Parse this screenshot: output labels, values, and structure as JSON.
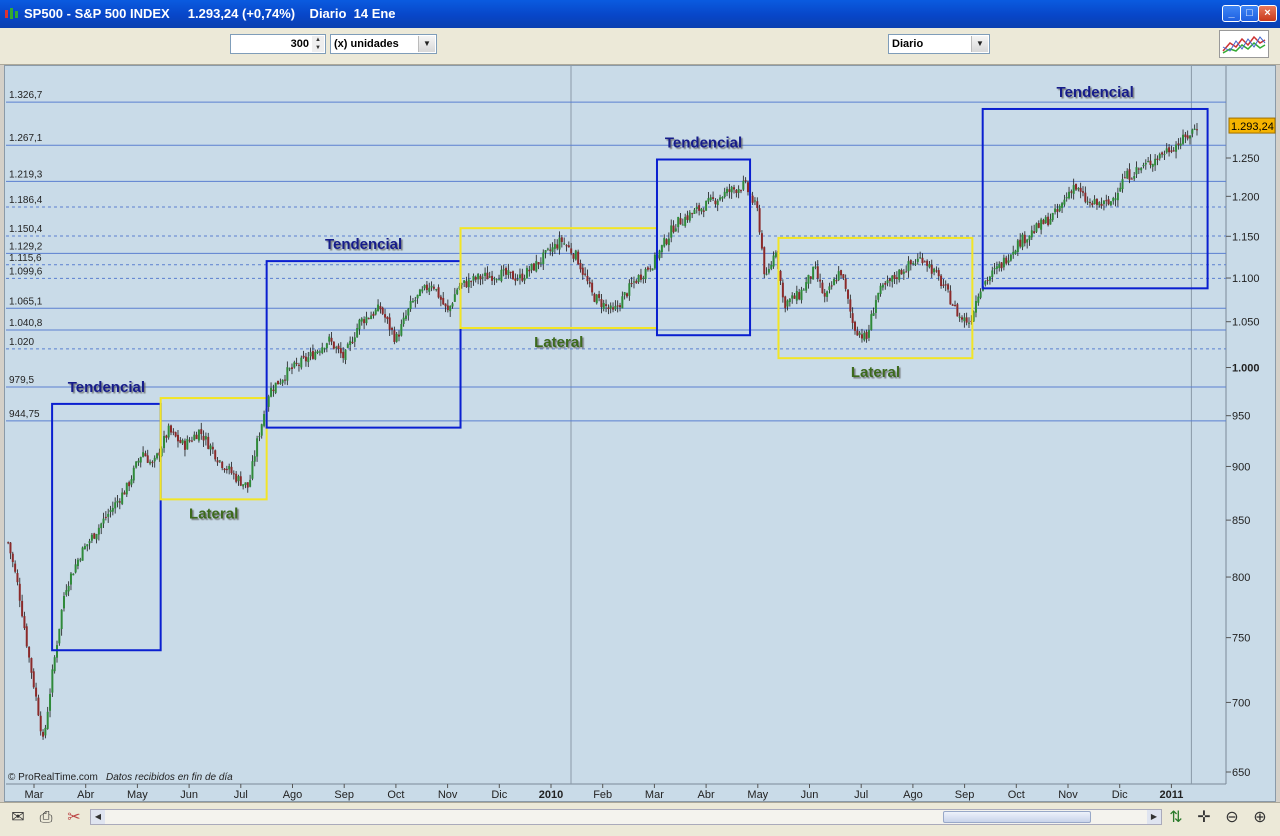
{
  "window": {
    "title": "SP500 - S&P 500 INDEX     1.293,24 (+0,74%)    Diario  14 Ene",
    "minimize": "_",
    "maximize": "□",
    "close": "×"
  },
  "toolbar": {
    "units_value": "300",
    "units_label": "(x) unidades",
    "period": "Diario"
  },
  "chart_data": {
    "type": "candlestick",
    "symbol": "SP500",
    "last_price": "1.293,24",
    "x_labels": [
      {
        "label": "Mar",
        "pos": 0
      },
      {
        "label": "Abr",
        "pos": 1
      },
      {
        "label": "May",
        "pos": 2
      },
      {
        "label": "Jun",
        "pos": 3
      },
      {
        "label": "Jul",
        "pos": 4
      },
      {
        "label": "Ago",
        "pos": 5
      },
      {
        "label": "Sep",
        "pos": 6
      },
      {
        "label": "Oct",
        "pos": 7
      },
      {
        "label": "Nov",
        "pos": 8
      },
      {
        "label": "Dic",
        "pos": 9
      },
      {
        "label": "2010",
        "pos": 10,
        "bold": true
      },
      {
        "label": "Feb",
        "pos": 11
      },
      {
        "label": "Mar",
        "pos": 12
      },
      {
        "label": "Abr",
        "pos": 13
      },
      {
        "label": "May",
        "pos": 14
      },
      {
        "label": "Jun",
        "pos": 15
      },
      {
        "label": "Jul",
        "pos": 16
      },
      {
        "label": "Ago",
        "pos": 17
      },
      {
        "label": "Sep",
        "pos": 18
      },
      {
        "label": "Oct",
        "pos": 19
      },
      {
        "label": "Nov",
        "pos": 20
      },
      {
        "label": "Dic",
        "pos": 21
      },
      {
        "label": "2011",
        "pos": 22,
        "bold": true
      }
    ],
    "y_axis_right": [
      {
        "value": 1250,
        "label": "1.250"
      },
      {
        "value": 1200,
        "label": "1.200"
      },
      {
        "value": 1150,
        "label": "1.150"
      },
      {
        "value": 1100,
        "label": "1.100"
      },
      {
        "value": 1050,
        "label": "1.050"
      },
      {
        "value": 1000,
        "label": "1.000",
        "bold": true
      },
      {
        "value": 950,
        "label": "950"
      },
      {
        "value": 900,
        "label": "900"
      },
      {
        "value": 850,
        "label": "850"
      },
      {
        "value": 800,
        "label": "800"
      },
      {
        "value": 750,
        "label": "750"
      },
      {
        "value": 700,
        "label": "700"
      },
      {
        "value": 650,
        "label": "650"
      }
    ],
    "levels": [
      {
        "value": 1326.7,
        "label": "1.326,7",
        "style": "solid"
      },
      {
        "value": 1267.1,
        "label": "1.267,1",
        "style": "solid"
      },
      {
        "value": 1219.3,
        "label": "1.219,3",
        "style": "solid"
      },
      {
        "value": 1186.4,
        "label": "1.186,4",
        "style": "dashed"
      },
      {
        "value": 1150.4,
        "label": "1.150,4",
        "style": "dashed"
      },
      {
        "value": 1129.2,
        "label": "1.129,2",
        "style": "solid"
      },
      {
        "value": 1115.6,
        "label": "1.115,6",
        "style": "dashed"
      },
      {
        "value": 1099.6,
        "label": "1.099,6",
        "style": "dashed"
      },
      {
        "value": 1065.1,
        "label": "1.065,1",
        "style": "solid"
      },
      {
        "value": 1040.8,
        "label": "1.040,8",
        "style": "solid"
      },
      {
        "value": 1020,
        "label": "1.020",
        "style": "dashed"
      },
      {
        "value": 979.5,
        "label": "979,5",
        "style": "solid"
      },
      {
        "value": 944.75,
        "label": "944,75",
        "style": "solid"
      }
    ],
    "series_path": [
      {
        "pos": -0.5,
        "v": 830
      },
      {
        "pos": -0.3,
        "v": 790
      },
      {
        "pos": -0.1,
        "v": 735
      },
      {
        "pos": 0.1,
        "v": 690
      },
      {
        "pos": 0.18,
        "v": 670
      },
      {
        "pos": 0.35,
        "v": 720
      },
      {
        "pos": 0.6,
        "v": 790
      },
      {
        "pos": 0.9,
        "v": 820
      },
      {
        "pos": 1.2,
        "v": 840
      },
      {
        "pos": 1.5,
        "v": 860
      },
      {
        "pos": 1.8,
        "v": 880
      },
      {
        "pos": 2.1,
        "v": 915
      },
      {
        "pos": 2.3,
        "v": 900
      },
      {
        "pos": 2.6,
        "v": 935
      },
      {
        "pos": 2.9,
        "v": 920
      },
      {
        "pos": 3.2,
        "v": 935
      },
      {
        "pos": 3.6,
        "v": 905
      },
      {
        "pos": 3.9,
        "v": 890
      },
      {
        "pos": 4.15,
        "v": 880
      },
      {
        "pos": 4.3,
        "v": 920
      },
      {
        "pos": 4.55,
        "v": 975
      },
      {
        "pos": 4.9,
        "v": 995
      },
      {
        "pos": 5.3,
        "v": 1010
      },
      {
        "pos": 5.7,
        "v": 1030
      },
      {
        "pos": 6.0,
        "v": 1010
      },
      {
        "pos": 6.3,
        "v": 1050
      },
      {
        "pos": 6.7,
        "v": 1065
      },
      {
        "pos": 7.0,
        "v": 1030
      },
      {
        "pos": 7.3,
        "v": 1070
      },
      {
        "pos": 7.7,
        "v": 1095
      },
      {
        "pos": 8.0,
        "v": 1060
      },
      {
        "pos": 8.2,
        "v": 1090
      },
      {
        "pos": 8.6,
        "v": 1100
      },
      {
        "pos": 9.0,
        "v": 1105
      },
      {
        "pos": 9.4,
        "v": 1100
      },
      {
        "pos": 9.7,
        "v": 1115
      },
      {
        "pos": 10.2,
        "v": 1145
      },
      {
        "pos": 10.5,
        "v": 1125
      },
      {
        "pos": 10.8,
        "v": 1080
      },
      {
        "pos": 11.2,
        "v": 1060
      },
      {
        "pos": 11.6,
        "v": 1095
      },
      {
        "pos": 12.0,
        "v": 1120
      },
      {
        "pos": 12.4,
        "v": 1165
      },
      {
        "pos": 12.9,
        "v": 1185
      },
      {
        "pos": 13.4,
        "v": 1205
      },
      {
        "pos": 13.75,
        "v": 1215
      },
      {
        "pos": 14.0,
        "v": 1180
      },
      {
        "pos": 14.15,
        "v": 1095
      },
      {
        "pos": 14.35,
        "v": 1135
      },
      {
        "pos": 14.5,
        "v": 1070
      },
      {
        "pos": 14.8,
        "v": 1080
      },
      {
        "pos": 15.1,
        "v": 1110
      },
      {
        "pos": 15.3,
        "v": 1075
      },
      {
        "pos": 15.6,
        "v": 1110
      },
      {
        "pos": 15.85,
        "v": 1045
      },
      {
        "pos": 16.1,
        "v": 1030
      },
      {
        "pos": 16.3,
        "v": 1080
      },
      {
        "pos": 16.8,
        "v": 1110
      },
      {
        "pos": 17.2,
        "v": 1125
      },
      {
        "pos": 17.6,
        "v": 1090
      },
      {
        "pos": 17.9,
        "v": 1055
      },
      {
        "pos": 18.1,
        "v": 1050
      },
      {
        "pos": 18.3,
        "v": 1090
      },
      {
        "pos": 18.7,
        "v": 1115
      },
      {
        "pos": 19.0,
        "v": 1140
      },
      {
        "pos": 19.4,
        "v": 1160
      },
      {
        "pos": 19.8,
        "v": 1180
      },
      {
        "pos": 20.1,
        "v": 1215
      },
      {
        "pos": 20.4,
        "v": 1190
      },
      {
        "pos": 20.8,
        "v": 1190
      },
      {
        "pos": 21.1,
        "v": 1225
      },
      {
        "pos": 21.5,
        "v": 1240
      },
      {
        "pos": 21.9,
        "v": 1260
      },
      {
        "pos": 22.25,
        "v": 1275
      },
      {
        "pos": 22.5,
        "v": 1293
      }
    ],
    "annotations": [
      {
        "text": "Tendencial",
        "type": "trend",
        "p0": 0.35,
        "p1": 2.45,
        "vlo": 740,
        "vhi": 962
      },
      {
        "text": "Lateral",
        "type": "range",
        "p0": 2.45,
        "p1": 4.5,
        "vlo": 869,
        "vhi": 968
      },
      {
        "text": "Tendencial",
        "type": "trend",
        "p0": 4.5,
        "p1": 8.25,
        "vlo": 938,
        "vhi": 1120
      },
      {
        "text": "Lateral",
        "type": "range",
        "p0": 8.25,
        "p1": 12.05,
        "vlo": 1043,
        "vhi": 1160
      },
      {
        "text": "Tendencial",
        "type": "trend",
        "p0": 12.05,
        "p1": 13.85,
        "vlo": 1035,
        "vhi": 1248
      },
      {
        "text": "Lateral",
        "type": "range",
        "p0": 14.4,
        "p1": 18.15,
        "vlo": 1010,
        "vhi": 1148
      },
      {
        "text": "Tendencial",
        "type": "trend",
        "p0": 18.35,
        "p1": 22.7,
        "vlo": 1088,
        "vhi": 1317
      }
    ],
    "credit": "© ProRealTime.com",
    "credit_note": "Datos recibidos en fin de día"
  },
  "colors": {
    "trend_box": "#0a1fd0",
    "range_box": "#f2e526",
    "trend_text": "#131a8a",
    "range_text": "#3d6b1f",
    "price_badge": "#f5b400",
    "bull": "#2f8a3a",
    "bear": "#8b2a2a"
  },
  "bottom_icons": [
    "mail-icon",
    "print-icon",
    "scissors-icon",
    "scroll-left-icon",
    "scroll-right-icon",
    "indicator-icon",
    "crosshair-icon",
    "zoom-out-icon",
    "zoom-in-icon"
  ]
}
